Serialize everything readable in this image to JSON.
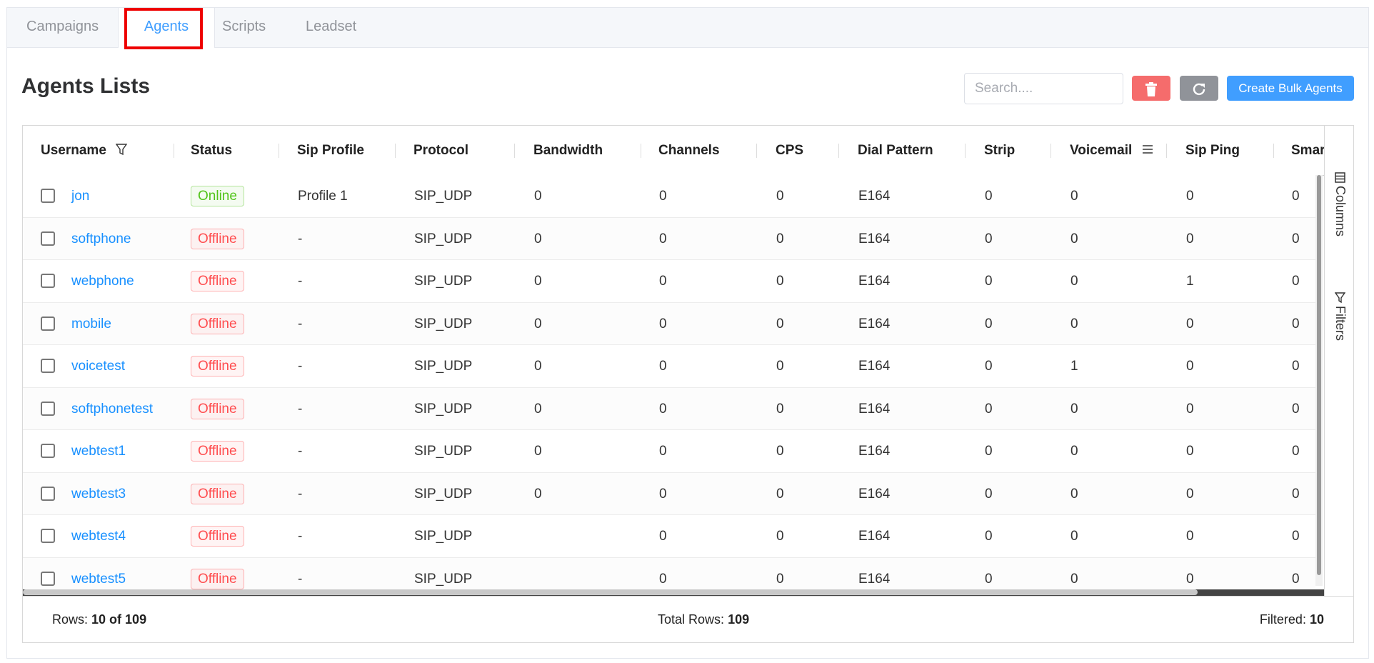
{
  "tabs": [
    "Campaigns",
    "Agents",
    "Scripts",
    "Leadset"
  ],
  "title": "Agents Lists",
  "search_placeholder": "Search....",
  "create_button": "Create Bulk Agents",
  "table": {
    "columns": [
      "Username",
      "Status",
      "Sip Profile",
      "Protocol",
      "Bandwidth",
      "Channels",
      "CPS",
      "Dial Pattern",
      "Strip",
      "Voicemail",
      "Sip Ping",
      "Smar"
    ],
    "rows": [
      [
        "jon",
        "Online",
        "Profile 1",
        "SIP_UDP",
        0,
        0,
        0,
        "E164",
        0,
        0,
        0,
        0
      ],
      [
        "softphone",
        "Offline",
        "-",
        "SIP_UDP",
        0,
        0,
        0,
        "E164",
        0,
        0,
        0,
        0
      ],
      [
        "webphone",
        "Offline",
        "-",
        "SIP_UDP",
        0,
        0,
        0,
        "E164",
        0,
        0,
        1,
        0
      ],
      [
        "mobile",
        "Offline",
        "-",
        "SIP_UDP",
        0,
        0,
        0,
        "E164",
        0,
        0,
        0,
        0
      ],
      [
        "voicetest",
        "Offline",
        "-",
        "SIP_UDP",
        0,
        0,
        0,
        "E164",
        0,
        1,
        0,
        0
      ],
      [
        "softphonetest",
        "Offline",
        "-",
        "SIP_UDP",
        0,
        0,
        0,
        "E164",
        0,
        0,
        0,
        0
      ],
      [
        "webtest1",
        "Offline",
        "-",
        "SIP_UDP",
        0,
        0,
        0,
        "E164",
        0,
        0,
        0,
        0
      ],
      [
        "webtest3",
        "Offline",
        "-",
        "SIP_UDP",
        0,
        0,
        0,
        "E164",
        0,
        0,
        0,
        0
      ],
      [
        "webtest4",
        "Offline",
        "-",
        "SIP_UDP",
        null,
        0,
        0,
        "E164",
        0,
        0,
        0,
        0
      ],
      [
        "webtest5",
        "Offline",
        "-",
        "SIP_UDP",
        null,
        0,
        0,
        "E164",
        0,
        0,
        0,
        0
      ]
    ],
    "status_colors": [
      "#52c41a",
      "#ff4d4f",
      "#ff4d4f",
      "#ff4d4f",
      "#ff4d4f",
      "#ff4d4f",
      "#ff4d4f",
      "#ff4d4f",
      "#ff4d4f",
      "#ff4d4f"
    ]
  },
  "side_panel": [
    "Columns",
    "Filters"
  ],
  "footer": {
    "rows_label": "Rows:",
    "rows_value": "10 of 109",
    "total_label": "Total Rows:",
    "total_value": "109",
    "filtered_label": "Filtered:",
    "filtered_value": "10"
  }
}
